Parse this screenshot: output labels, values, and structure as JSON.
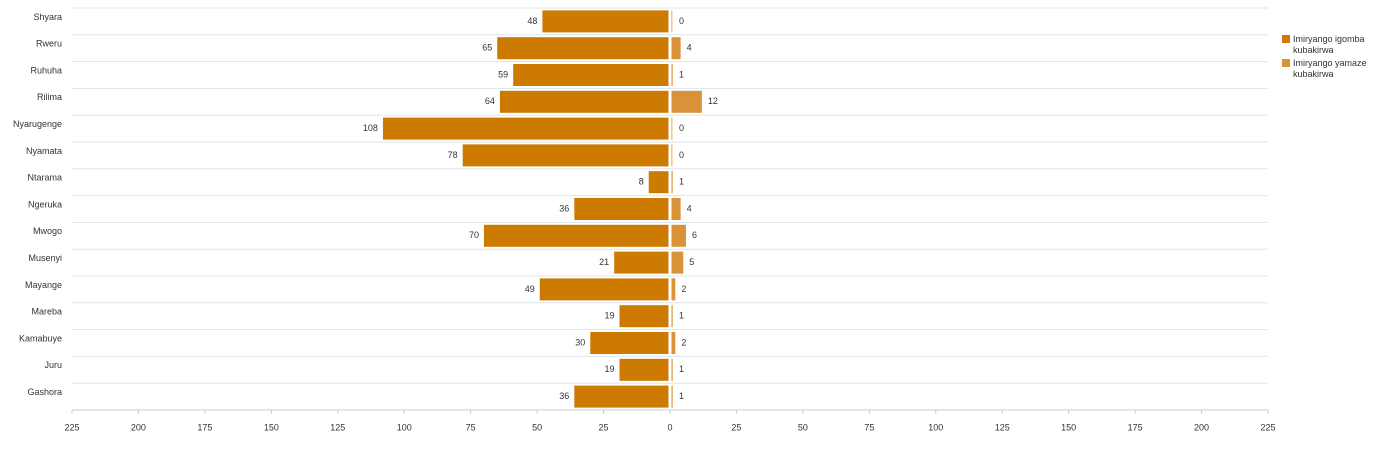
{
  "chart_data": {
    "type": "butterfly",
    "categories": [
      "Shyara",
      "Rweru",
      "Ruhuha",
      "Rilima",
      "Nyarugenge",
      "Nyamata",
      "Ntarama",
      "Ngeruka",
      "Mwogo",
      "Musenyi",
      "Mayange",
      "Mareba",
      "Kamabuye",
      "Juru",
      "Gashora"
    ],
    "series": [
      {
        "name": "Imiryango igomba kubakirwa",
        "color": "#cc7a00",
        "values": [
          -48,
          -65,
          -59,
          -64,
          -108,
          -78,
          -8,
          -36,
          -70,
          -21,
          -49,
          -19,
          -30,
          -19,
          -36
        ],
        "value_labels": [
          "48",
          "65",
          "59",
          "64",
          "108",
          "78",
          "8",
          "36",
          "70",
          "21",
          "49",
          "19",
          "30",
          "19",
          "36"
        ]
      },
      {
        "name": "Imiryango yamaze kubakirwa",
        "color": "#d9923a",
        "values": [
          0,
          4,
          1,
          12,
          0,
          0,
          1,
          4,
          6,
          5,
          2,
          1,
          2,
          1,
          1
        ]
      }
    ],
    "xlim": [
      -225,
      225
    ],
    "xticks": [
      {
        "value": -225,
        "label": "225"
      },
      {
        "value": -200,
        "label": "200"
      },
      {
        "value": -175,
        "label": "175"
      },
      {
        "value": -150,
        "label": "150"
      },
      {
        "value": -125,
        "label": "125"
      },
      {
        "value": -100,
        "label": "100"
      },
      {
        "value": -75,
        "label": "75"
      },
      {
        "value": -50,
        "label": "50"
      },
      {
        "value": -25,
        "label": "25"
      },
      0,
      25,
      50,
      75,
      100,
      125,
      150,
      175,
      200,
      225
    ],
    "grid": true
  }
}
